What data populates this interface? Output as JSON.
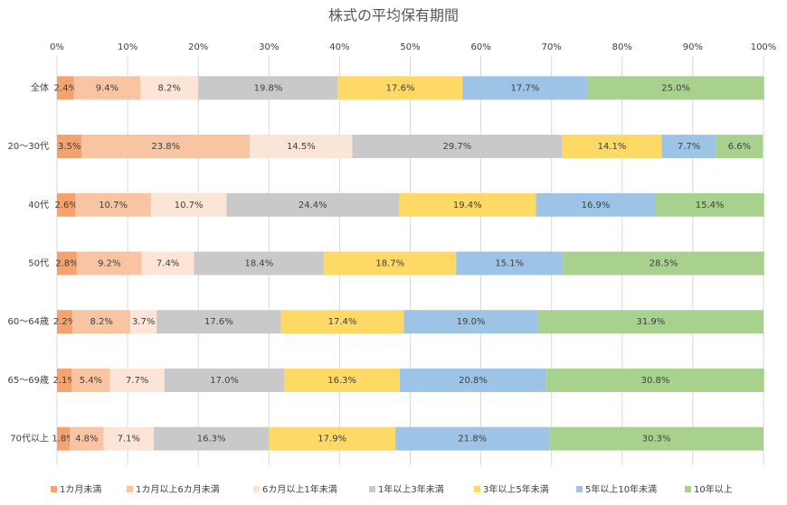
{
  "chart_data": {
    "type": "bar",
    "orientation": "horizontal",
    "stacked": true,
    "title": "株式の平均保有期間",
    "categories": [
      "全体",
      "20～30代",
      "40代",
      "50代",
      "60～64歳",
      "65～69歳",
      "70代以上"
    ],
    "xlim": [
      0,
      100
    ],
    "xticks": [
      {
        "value": 0,
        "label": "0%"
      },
      {
        "value": 10,
        "label": "10%"
      },
      {
        "value": 20,
        "label": "20%"
      },
      {
        "value": 30,
        "label": "30%"
      },
      {
        "value": 40,
        "label": "40%"
      },
      {
        "value": 50,
        "label": "50%"
      },
      {
        "value": 60,
        "label": "60%"
      },
      {
        "value": 70,
        "label": "70%"
      },
      {
        "value": 80,
        "label": "80%"
      },
      {
        "value": 90,
        "label": "90%"
      },
      {
        "value": 100,
        "label": "100%"
      }
    ],
    "grid": true,
    "legend": "bottom",
    "series": [
      {
        "name": "1カ月未満",
        "color": "#f4a26e",
        "values": [
          2.4,
          3.5,
          2.6,
          2.8,
          2.2,
          2.1,
          1.8
        ],
        "value_labels": [
          "2.4%",
          "3.5%",
          "2.6%",
          "2.8%",
          "2.2%",
          "2.1%",
          "1.8%"
        ]
      },
      {
        "name": "1カ月以上6カ月未満",
        "color": "#f8c4a2",
        "values": [
          9.4,
          23.8,
          10.7,
          9.2,
          8.2,
          5.4,
          4.8
        ],
        "value_labels": [
          "9.4%",
          "23.8%",
          "10.7%",
          "9.2%",
          "8.2%",
          "5.4%",
          "4.8%"
        ]
      },
      {
        "name": "6カ月以上1年未満",
        "color": "#fce4d6",
        "values": [
          8.2,
          14.5,
          10.7,
          7.4,
          3.7,
          7.7,
          7.1
        ],
        "value_labels": [
          "8.2%",
          "14.5%",
          "10.7%",
          "7.4%",
          "3.7%",
          "7.7%",
          "7.1%"
        ]
      },
      {
        "name": "1年以上3年未満",
        "color": "#c9c9c9",
        "values": [
          19.8,
          29.7,
          24.4,
          18.4,
          17.6,
          17.0,
          16.3
        ],
        "value_labels": [
          "19.8%",
          "29.7%",
          "24.4%",
          "18.4%",
          "17.6%",
          "17.0%",
          "16.3%"
        ]
      },
      {
        "name": "3年以上5年未満",
        "color": "#ffd966",
        "values": [
          17.6,
          14.1,
          19.4,
          18.7,
          17.4,
          16.3,
          17.9
        ],
        "value_labels": [
          "17.6%",
          "14.1%",
          "19.4%",
          "18.7%",
          "17.4%",
          "16.3%",
          "17.9%"
        ]
      },
      {
        "name": "5年以上10年未満",
        "color": "#9dc3e6",
        "values": [
          17.7,
          7.7,
          16.9,
          15.1,
          19.0,
          20.8,
          21.8
        ],
        "value_labels": [
          "17.7%",
          "7.7%",
          "16.9%",
          "15.1%",
          "19.0%",
          "20.8%",
          "21.8%"
        ]
      },
      {
        "name": "10年以上",
        "color": "#a9d18e",
        "values": [
          25.0,
          6.6,
          15.4,
          28.5,
          31.9,
          30.8,
          30.3
        ],
        "value_labels": [
          "25.0%",
          "6.6%",
          "15.4%",
          "28.5%",
          "31.9%",
          "30.8%",
          "30.3%"
        ]
      }
    ]
  }
}
